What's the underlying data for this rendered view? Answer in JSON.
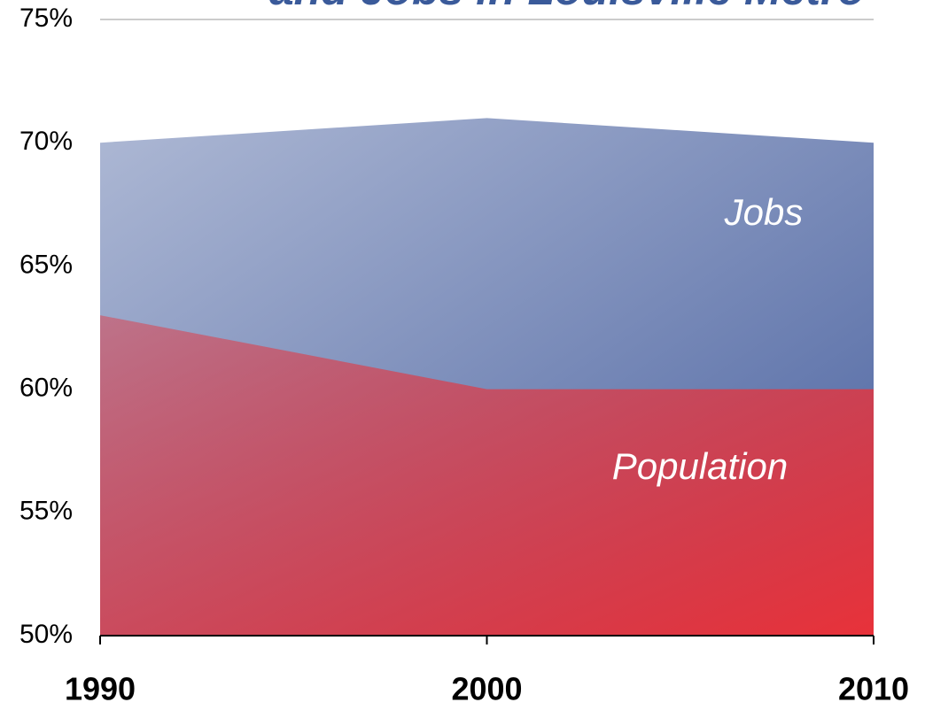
{
  "chart_data": {
    "type": "area",
    "title": "and Jobs in Louisville Metro",
    "x": [
      1990,
      2000,
      2010
    ],
    "series": [
      {
        "name": "Jobs",
        "color": "#4a62a0",
        "values": [
          70,
          71,
          70
        ]
      },
      {
        "name": "Population",
        "color": "#e8323a",
        "values": [
          63,
          60,
          60
        ]
      }
    ],
    "xlim": [
      1990,
      2010
    ],
    "xticks": [
      1990,
      2000,
      2010
    ],
    "ylim": [
      50,
      75
    ],
    "yticks": [
      {
        "value": 50,
        "label": "50%"
      },
      {
        "value": 55,
        "label": "55%"
      },
      {
        "value": 60,
        "label": "60%"
      },
      {
        "value": 65,
        "label": "65%"
      },
      {
        "value": 70,
        "label": "70%"
      },
      {
        "value": 75,
        "label": "75%"
      }
    ],
    "grid": false
  }
}
